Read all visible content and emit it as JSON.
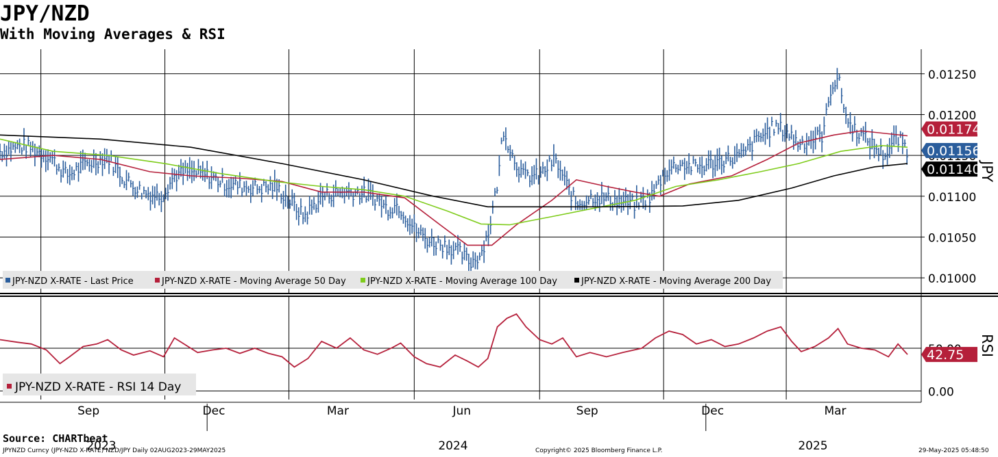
{
  "header": {
    "title": "JPY/NZD",
    "subtitle": "With Moving Averages & RSI"
  },
  "footer": {
    "source": "Source: CHARTbeat",
    "ticker_info": "JPYNZD Curncy (JPY-NZD X-RATE) NZD/JPY  Daily 02AUG2023-29MAY2025",
    "copyright": "Copyright© 2025 Bloomberg Finance L.P.",
    "timestamp": "29-May-2025 05:48:50"
  },
  "colors": {
    "price": "#2a5d9c",
    "ma50": "#b51f3a",
    "ma100": "#7fcc1c",
    "ma200": "#000000",
    "rsi": "#b51f3a",
    "legend_bg": "#e6e6e6"
  },
  "chart_data": [
    {
      "type": "line",
      "title": "JPY/NZD",
      "ylabel": "JPY",
      "ylim": [
        0.0098,
        0.0128
      ],
      "y_ticks": [
        "0.01250",
        "0.01200",
        "0.01150",
        "0.01100",
        "0.01050",
        "0.01000"
      ],
      "grid": true,
      "legend": "bottom-left",
      "x_months": [
        "Sep",
        "Dec",
        "Mar",
        "Jun",
        "Sep",
        "Dec",
        "Mar"
      ],
      "x_years": [
        "2023",
        "2024",
        "2025"
      ],
      "value_labels": [
        "0.01174",
        "0.01156",
        "0.01140"
      ],
      "series": [
        {
          "name": "JPY-NZD X-RATE - Last Price",
          "key": "price",
          "style": "hlc-bar",
          "points": [
            [
              "2023-08-02",
              0.01155
            ],
            [
              "2023-08-20",
              0.01162
            ],
            [
              "2023-09-08",
              0.01148
            ],
            [
              "2023-09-20",
              0.01125
            ],
            [
              "2023-10-05",
              0.0114
            ],
            [
              "2023-10-20",
              0.01148
            ],
            [
              "2023-11-02",
              0.0112
            ],
            [
              "2023-11-15",
              0.01105
            ],
            [
              "2023-11-28",
              0.011
            ],
            [
              "2023-12-08",
              0.01125
            ],
            [
              "2023-12-18",
              0.0113
            ],
            [
              "2024-01-02",
              0.01125
            ],
            [
              "2024-01-15",
              0.01115
            ],
            [
              "2024-01-28",
              0.01112
            ],
            [
              "2024-02-08",
              0.0111
            ],
            [
              "2024-02-20",
              0.01112
            ],
            [
              "2024-03-01",
              0.01095
            ],
            [
              "2024-03-12",
              0.01075
            ],
            [
              "2024-03-25",
              0.011
            ],
            [
              "2024-04-08",
              0.01105
            ],
            [
              "2024-04-20",
              0.01105
            ],
            [
              "2024-05-02",
              0.011
            ],
            [
              "2024-05-12",
              0.01085
            ],
            [
              "2024-05-20",
              0.0109
            ],
            [
              "2024-06-01",
              0.0106
            ],
            [
              "2024-06-12",
              0.01045
            ],
            [
              "2024-06-25",
              0.0104
            ],
            [
              "2024-07-05",
              0.0103
            ],
            [
              "2024-07-12",
              0.01018
            ],
            [
              "2024-07-20",
              0.0103
            ],
            [
              "2024-07-26",
              0.0106
            ],
            [
              "2024-08-02",
              0.01125
            ],
            [
              "2024-08-05",
              0.01185
            ],
            [
              "2024-08-12",
              0.0115
            ],
            [
              "2024-08-20",
              0.01125
            ],
            [
              "2024-09-01",
              0.01125
            ],
            [
              "2024-09-12",
              0.01145
            ],
            [
              "2024-09-22",
              0.0111
            ],
            [
              "2024-09-28",
              0.0109
            ],
            [
              "2024-10-10",
              0.011
            ],
            [
              "2024-10-25",
              0.01095
            ],
            [
              "2024-11-10",
              0.0109
            ],
            [
              "2024-11-22",
              0.011
            ],
            [
              "2024-12-02",
              0.0113
            ],
            [
              "2024-12-12",
              0.0114
            ],
            [
              "2024-12-25",
              0.01135
            ],
            [
              "2025-01-05",
              0.0114
            ],
            [
              "2025-01-15",
              0.01145
            ],
            [
              "2025-01-28",
              0.0115
            ],
            [
              "2025-02-08",
              0.0117
            ],
            [
              "2025-02-20",
              0.01185
            ],
            [
              "2025-03-01",
              0.0118
            ],
            [
              "2025-03-10",
              0.01165
            ],
            [
              "2025-03-20",
              0.0117
            ],
            [
              "2025-03-28",
              0.01175
            ],
            [
              "2025-04-03",
              0.01235
            ],
            [
              "2025-04-08",
              0.01245
            ],
            [
              "2025-04-15",
              0.0119
            ],
            [
              "2025-04-25",
              0.01175
            ],
            [
              "2025-05-05",
              0.0116
            ],
            [
              "2025-05-12",
              0.0115
            ],
            [
              "2025-05-20",
              0.0117
            ],
            [
              "2025-05-26",
              0.01165
            ],
            [
              "2025-05-29",
              0.01156
            ]
          ]
        },
        {
          "name": "JPY-NZD X-RATE - Moving Average 50 Day",
          "key": "ma50",
          "style": "line",
          "points": [
            [
              "2023-08-02",
              0.01145
            ],
            [
              "2023-09-10",
              0.0115
            ],
            [
              "2023-10-15",
              0.01145
            ],
            [
              "2023-11-20",
              0.0113
            ],
            [
              "2023-12-20",
              0.01125
            ],
            [
              "2024-01-25",
              0.01122
            ],
            [
              "2024-02-25",
              0.01118
            ],
            [
              "2024-03-25",
              0.01105
            ],
            [
              "2024-04-25",
              0.01105
            ],
            [
              "2024-05-25",
              0.01098
            ],
            [
              "2024-06-20",
              0.01065
            ],
            [
              "2024-07-10",
              0.0104
            ],
            [
              "2024-07-28",
              0.0104
            ],
            [
              "2024-08-15",
              0.01065
            ],
            [
              "2024-09-10",
              0.01095
            ],
            [
              "2024-09-28",
              0.0112
            ],
            [
              "2024-10-20",
              0.01112
            ],
            [
              "2024-11-10",
              0.01105
            ],
            [
              "2024-11-28",
              0.011
            ],
            [
              "2024-12-20",
              0.01115
            ],
            [
              "2025-01-20",
              0.01125
            ],
            [
              "2025-02-15",
              0.01145
            ],
            [
              "2025-03-10",
              0.01165
            ],
            [
              "2025-04-05",
              0.01175
            ],
            [
              "2025-04-25",
              0.0118
            ],
            [
              "2025-05-29",
              0.01174
            ]
          ]
        },
        {
          "name": "JPY-NZD X-RATE - Moving Average 100 Day",
          "key": "ma100",
          "style": "line",
          "points": [
            [
              "2023-08-02",
              0.0117
            ],
            [
              "2023-09-10",
              0.01155
            ],
            [
              "2023-10-20",
              0.0115
            ],
            [
              "2023-12-01",
              0.0114
            ],
            [
              "2024-01-10",
              0.01128
            ],
            [
              "2024-02-20",
              0.01118
            ],
            [
              "2024-03-25",
              0.01112
            ],
            [
              "2024-04-25",
              0.01108
            ],
            [
              "2024-05-25",
              0.011
            ],
            [
              "2024-06-25",
              0.01082
            ],
            [
              "2024-07-20",
              0.01066
            ],
            [
              "2024-08-10",
              0.01065
            ],
            [
              "2024-09-10",
              0.01075
            ],
            [
              "2024-10-10",
              0.01085
            ],
            [
              "2024-11-10",
              0.01095
            ],
            [
              "2024-12-10",
              0.01112
            ],
            [
              "2025-01-10",
              0.0112
            ],
            [
              "2025-02-10",
              0.0113
            ],
            [
              "2025-03-10",
              0.0114
            ],
            [
              "2025-04-10",
              0.01155
            ],
            [
              "2025-05-10",
              0.01162
            ],
            [
              "2025-05-29",
              0.0116
            ]
          ]
        },
        {
          "name": "JPY-NZD X-RATE - Moving Average 200 Day",
          "key": "ma200",
          "style": "line",
          "points": [
            [
              "2023-08-02",
              0.01175
            ],
            [
              "2023-10-15",
              0.0117
            ],
            [
              "2023-12-20",
              0.0116
            ],
            [
              "2024-02-25",
              0.0114
            ],
            [
              "2024-04-25",
              0.0112
            ],
            [
              "2024-06-15",
              0.011
            ],
            [
              "2024-07-25",
              0.01087
            ],
            [
              "2024-08-25",
              0.01087
            ],
            [
              "2024-10-15",
              0.01087
            ],
            [
              "2024-12-15",
              0.01088
            ],
            [
              "2025-01-25",
              0.01095
            ],
            [
              "2025-03-05",
              0.0111
            ],
            [
              "2025-04-05",
              0.01125
            ],
            [
              "2025-05-05",
              0.01136
            ],
            [
              "2025-05-29",
              0.0114
            ]
          ]
        }
      ]
    },
    {
      "type": "line",
      "ylabel": "RSI",
      "ylim": [
        -10,
        110
      ],
      "y_ticks": [
        "50.00",
        "0.00"
      ],
      "grid": true,
      "legend": "bottom-left",
      "value_label": "42.75",
      "series": [
        {
          "name": "JPY-NZD X-RATE - RSI 14 Day",
          "key": "rsi",
          "points": [
            [
              "2023-08-02",
              60
            ],
            [
              "2023-08-15",
              57
            ],
            [
              "2023-08-25",
              55
            ],
            [
              "2023-09-05",
              48
            ],
            [
              "2023-09-15",
              32
            ],
            [
              "2023-09-22",
              40
            ],
            [
              "2023-10-02",
              52
            ],
            [
              "2023-10-12",
              55
            ],
            [
              "2023-10-20",
              60
            ],
            [
              "2023-10-30",
              48
            ],
            [
              "2023-11-08",
              42
            ],
            [
              "2023-11-20",
              47
            ],
            [
              "2023-11-30",
              40
            ],
            [
              "2023-12-08",
              62
            ],
            [
              "2023-12-15",
              55
            ],
            [
              "2023-12-25",
              45
            ],
            [
              "2024-01-05",
              48
            ],
            [
              "2024-01-15",
              50
            ],
            [
              "2024-01-25",
              44
            ],
            [
              "2024-02-05",
              50
            ],
            [
              "2024-02-15",
              44
            ],
            [
              "2024-02-25",
              40
            ],
            [
              "2024-03-05",
              28
            ],
            [
              "2024-03-15",
              38
            ],
            [
              "2024-03-25",
              58
            ],
            [
              "2024-04-05",
              50
            ],
            [
              "2024-04-15",
              62
            ],
            [
              "2024-04-25",
              48
            ],
            [
              "2024-05-05",
              43
            ],
            [
              "2024-05-15",
              50
            ],
            [
              "2024-05-22",
              56
            ],
            [
              "2024-06-01",
              40
            ],
            [
              "2024-06-10",
              32
            ],
            [
              "2024-06-20",
              28
            ],
            [
              "2024-07-01",
              42
            ],
            [
              "2024-07-10",
              35
            ],
            [
              "2024-07-18",
              28
            ],
            [
              "2024-07-25",
              38
            ],
            [
              "2024-08-01",
              75
            ],
            [
              "2024-08-08",
              85
            ],
            [
              "2024-08-15",
              90
            ],
            [
              "2024-08-22",
              75
            ],
            [
              "2024-09-01",
              60
            ],
            [
              "2024-09-10",
              55
            ],
            [
              "2024-09-18",
              62
            ],
            [
              "2024-09-28",
              40
            ],
            [
              "2024-10-08",
              45
            ],
            [
              "2024-10-20",
              40
            ],
            [
              "2024-11-01",
              45
            ],
            [
              "2024-11-15",
              50
            ],
            [
              "2024-11-25",
              62
            ],
            [
              "2024-12-05",
              70
            ],
            [
              "2024-12-15",
              66
            ],
            [
              "2024-12-25",
              55
            ],
            [
              "2025-01-05",
              60
            ],
            [
              "2025-01-15",
              52
            ],
            [
              "2025-01-25",
              55
            ],
            [
              "2025-02-05",
              62
            ],
            [
              "2025-02-15",
              70
            ],
            [
              "2025-02-25",
              75
            ],
            [
              "2025-03-05",
              58
            ],
            [
              "2025-03-12",
              46
            ],
            [
              "2025-03-22",
              52
            ],
            [
              "2025-04-01",
              62
            ],
            [
              "2025-04-08",
              73
            ],
            [
              "2025-04-15",
              55
            ],
            [
              "2025-04-25",
              50
            ],
            [
              "2025-05-05",
              48
            ],
            [
              "2025-05-15",
              40
            ],
            [
              "2025-05-22",
              55
            ],
            [
              "2025-05-29",
              42.75
            ]
          ]
        }
      ]
    }
  ]
}
